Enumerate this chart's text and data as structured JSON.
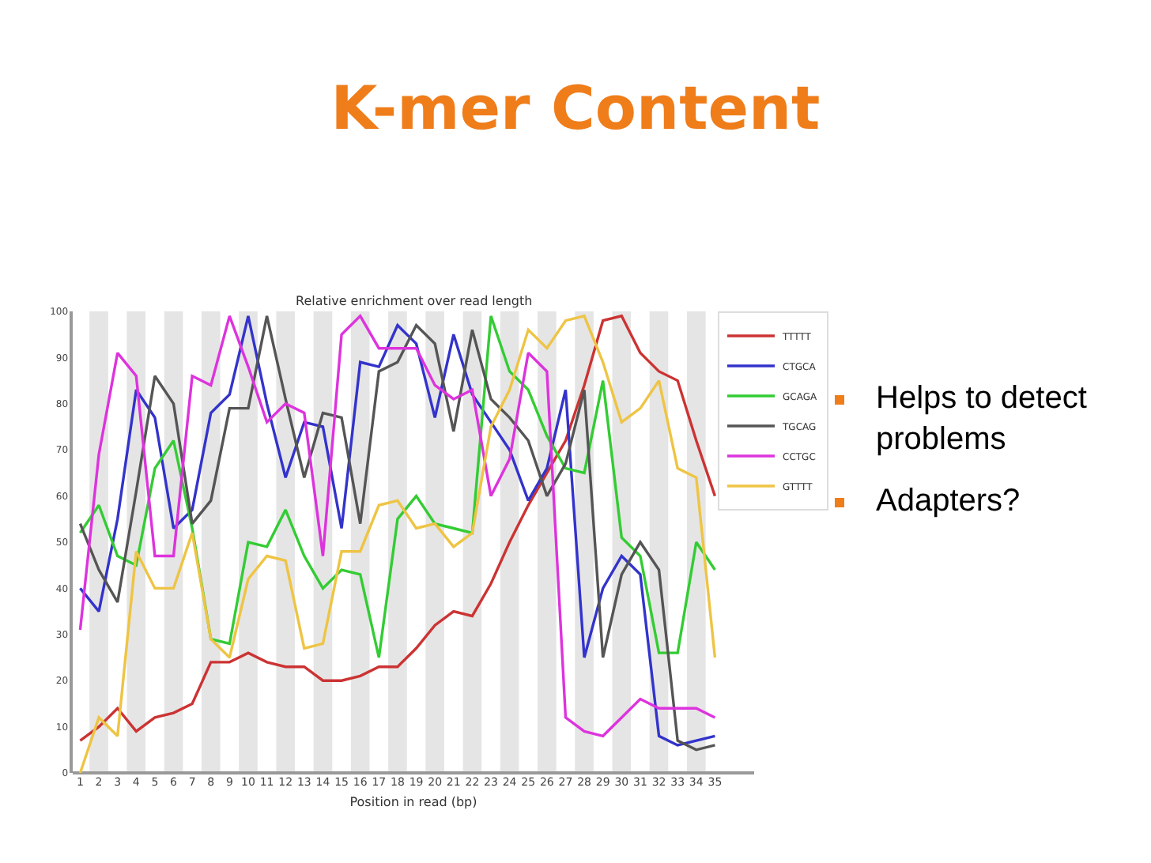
{
  "chart_data": {
    "type": "line",
    "title": "K-mer Content",
    "subtitle": "Relative enrichment over read length",
    "xlabel": "Position in read (bp)",
    "annotations": [
      "Helps to detect problems",
      "Adapters?"
    ],
    "x": [
      1,
      2,
      3,
      4,
      5,
      6,
      7,
      8,
      9,
      10,
      11,
      12,
      13,
      14,
      15,
      16,
      17,
      18,
      19,
      20,
      21,
      22,
      23,
      24,
      25,
      26,
      27,
      28,
      29,
      30,
      31,
      32,
      33,
      34,
      35
    ],
    "xlim": [
      0.6,
      37.1
    ],
    "xticks": [
      1,
      2,
      3,
      4,
      5,
      6,
      7,
      8,
      9,
      10,
      11,
      12,
      13,
      14,
      15,
      16,
      17,
      18,
      19,
      20,
      21,
      22,
      23,
      24,
      25,
      26,
      27,
      28,
      29,
      30,
      31,
      32,
      33,
      34,
      35
    ],
    "ylim": [
      0,
      100
    ],
    "yticks": [
      0,
      10,
      20,
      30,
      40,
      50,
      60,
      70,
      80,
      90,
      100
    ],
    "legend": "top right",
    "series": [
      {
        "name": "TTTTT",
        "color": "#cc3333",
        "values": [
          7,
          10,
          14,
          9,
          12,
          13,
          15,
          24,
          24,
          26,
          24,
          23,
          23,
          20,
          20,
          21,
          23,
          23,
          27,
          32,
          35,
          34,
          41,
          50,
          58,
          65,
          72,
          84,
          98,
          99,
          91,
          87,
          85,
          72,
          60
        ]
      },
      {
        "name": "CTGCA",
        "color": "#3333cc",
        "values": [
          40,
          35,
          55,
          83,
          77,
          53,
          57,
          78,
          82,
          99,
          80,
          64,
          76,
          75,
          53,
          89,
          88,
          97,
          93,
          77,
          95,
          82,
          76,
          70,
          59,
          66,
          83,
          25,
          40,
          47,
          43,
          8,
          6,
          7,
          8
        ]
      },
      {
        "name": "GCAGA",
        "color": "#33cc33",
        "values": [
          52,
          58,
          47,
          45,
          66,
          72,
          53,
          29,
          28,
          50,
          49,
          57,
          47,
          40,
          44,
          43,
          25,
          55,
          60,
          54,
          53,
          52,
          99,
          87,
          83,
          73,
          66,
          65,
          85,
          51,
          47,
          26,
          26,
          50,
          44
        ]
      },
      {
        "name": "TGCAG",
        "color": "#555555",
        "values": [
          54,
          44,
          37,
          61,
          86,
          80,
          54,
          59,
          79,
          79,
          99,
          81,
          64,
          78,
          77,
          54,
          87,
          89,
          97,
          93,
          74,
          96,
          81,
          77,
          72,
          60,
          67,
          83,
          25,
          43,
          50,
          44,
          7,
          5,
          6
        ]
      },
      {
        "name": "CCTGC",
        "color": "#dd33dd",
        "values": [
          31,
          69,
          91,
          86,
          47,
          47,
          86,
          84,
          99,
          88,
          76,
          80,
          78,
          47,
          95,
          99,
          92,
          92,
          92,
          84,
          81,
          83,
          60,
          68,
          91,
          87,
          12,
          9,
          8,
          12,
          16,
          14,
          14,
          14,
          12
        ]
      },
      {
        "name": "GTTTT",
        "color": "#eec444",
        "values": [
          0,
          12,
          8,
          48,
          40,
          40,
          52,
          29,
          25,
          42,
          47,
          46,
          27,
          28,
          48,
          48,
          58,
          59,
          53,
          54,
          49,
          52,
          75,
          83,
          96,
          92,
          98,
          99,
          89,
          76,
          79,
          85,
          66,
          64,
          25
        ]
      }
    ],
    "bands": [
      {
        "axis": "x",
        "from": 1.5,
        "to": 2.5,
        "color": "#e5e5e5"
      },
      {
        "axis": "x",
        "from": 3.5,
        "to": 4.5,
        "color": "#e5e5e5"
      },
      {
        "axis": "x",
        "from": 5.5,
        "to": 6.5,
        "color": "#e5e5e5"
      },
      {
        "axis": "x",
        "from": 7.5,
        "to": 8.5,
        "color": "#e5e5e5"
      },
      {
        "axis": "x",
        "from": 9.5,
        "to": 10.5,
        "color": "#e5e5e5"
      },
      {
        "axis": "x",
        "from": 11.5,
        "to": 12.5,
        "color": "#e5e5e5"
      },
      {
        "axis": "x",
        "from": 13.5,
        "to": 14.5,
        "color": "#e5e5e5"
      },
      {
        "axis": "x",
        "from": 15.5,
        "to": 16.5,
        "color": "#e5e5e5"
      },
      {
        "axis": "x",
        "from": 17.5,
        "to": 18.5,
        "color": "#e5e5e5"
      },
      {
        "axis": "x",
        "from": 19.5,
        "to": 20.5,
        "color": "#e5e5e5"
      },
      {
        "axis": "x",
        "from": 21.5,
        "to": 22.5,
        "color": "#e5e5e5"
      },
      {
        "axis": "x",
        "from": 23.5,
        "to": 24.5,
        "color": "#e5e5e5"
      },
      {
        "axis": "x",
        "from": 25.5,
        "to": 26.5,
        "color": "#e5e5e5"
      },
      {
        "axis": "x",
        "from": 27.5,
        "to": 28.5,
        "color": "#e5e5e5"
      },
      {
        "axis": "x",
        "from": 29.5,
        "to": 30.5,
        "color": "#e5e5e5"
      },
      {
        "axis": "x",
        "from": 31.5,
        "to": 32.5,
        "color": "#e5e5e5"
      },
      {
        "axis": "x",
        "from": 33.5,
        "to": 34.5,
        "color": "#e5e5e5"
      }
    ]
  }
}
